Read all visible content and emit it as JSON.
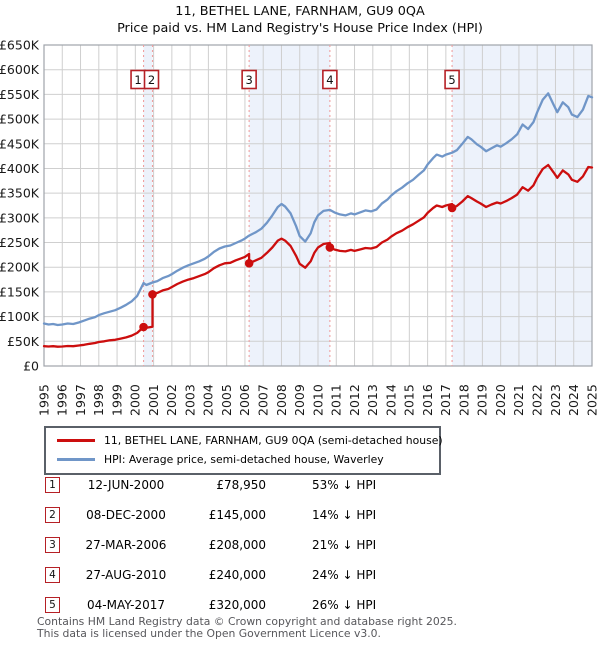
{
  "chart": {
    "title": "11, BETHEL LANE, FARNHAM, GU9 0QA",
    "subtitle": "Price paid vs. HM Land Registry's House Price Index (HPI)"
  },
  "legend": {
    "property": "11, BETHEL LANE, FARNHAM, GU9 0QA (semi-detached house)",
    "hpi": "HPI: Average price, semi-detached house, Waverley"
  },
  "sales_table": {
    "rows": [
      {
        "num": "1",
        "date": "12-JUN-2000",
        "price": "£78,950",
        "hpi": "53% ↓ HPI"
      },
      {
        "num": "2",
        "date": "08-DEC-2000",
        "price": "£145,000",
        "hpi": "14% ↓ HPI"
      },
      {
        "num": "3",
        "date": "27-MAR-2006",
        "price": "£208,000",
        "hpi": "21% ↓ HPI"
      },
      {
        "num": "4",
        "date": "27-AUG-2010",
        "price": "£240,000",
        "hpi": "24% ↓ HPI"
      },
      {
        "num": "5",
        "date": "04-MAY-2017",
        "price": "£320,000",
        "hpi": "26% ↓ HPI"
      }
    ]
  },
  "footer": {
    "line1": "Contains HM Land Registry data © Crown copyright and database right 2025.",
    "line2": "This data is licensed under the Open Government Licence v3.0."
  },
  "chart_data": {
    "type": "line",
    "title": "11, BETHEL LANE, FARNHAM, GU9 0QA",
    "subtitle": "Price paid vs. HM Land Registry's House Price Index (HPI)",
    "x_axis": {
      "range": [
        1995,
        2025
      ],
      "years": [
        1995,
        1996,
        1997,
        1998,
        1999,
        2000,
        2001,
        2002,
        2003,
        2004,
        2005,
        2006,
        2007,
        2008,
        2009,
        2010,
        2011,
        2012,
        2013,
        2014,
        2015,
        2016,
        2017,
        2018,
        2019,
        2020,
        2021,
        2022,
        2023,
        2024,
        2025
      ]
    },
    "y_axis": {
      "min_k": 0,
      "max_k": 650,
      "step_k": 50,
      "tick_labels": [
        "£0",
        "£50K",
        "£100K",
        "£150K",
        "£200K",
        "£250K",
        "£300K",
        "£350K",
        "£400K",
        "£450K",
        "£500K",
        "£550K",
        "£600K",
        "£650K"
      ]
    },
    "series": [
      {
        "name": "HPI: Average price, semi-detached house, Waverley",
        "color": "#7096c8",
        "unit": "GBP_thousands",
        "points": [
          [
            1995.0,
            86
          ],
          [
            1995.25,
            84
          ],
          [
            1995.5,
            85
          ],
          [
            1995.75,
            83
          ],
          [
            1996.0,
            84
          ],
          [
            1996.3,
            86
          ],
          [
            1996.6,
            85
          ],
          [
            1996.9,
            88
          ],
          [
            1997.2,
            92
          ],
          [
            1997.5,
            96
          ],
          [
            1997.8,
            99
          ],
          [
            1998.0,
            103
          ],
          [
            1998.3,
            107
          ],
          [
            1998.6,
            110
          ],
          [
            1998.9,
            113
          ],
          [
            1999.2,
            118
          ],
          [
            1999.5,
            124
          ],
          [
            1999.8,
            131
          ],
          [
            2000.1,
            142
          ],
          [
            2000.45,
            168
          ],
          [
            2000.6,
            164
          ],
          [
            2000.94,
            169
          ],
          [
            2001.2,
            172
          ],
          [
            2001.5,
            178
          ],
          [
            2001.8,
            182
          ],
          [
            2002.0,
            186
          ],
          [
            2002.3,
            193
          ],
          [
            2002.6,
            199
          ],
          [
            2002.9,
            204
          ],
          [
            2003.2,
            208
          ],
          [
            2003.5,
            212
          ],
          [
            2003.8,
            217
          ],
          [
            2004.0,
            222
          ],
          [
            2004.3,
            231
          ],
          [
            2004.6,
            238
          ],
          [
            2004.9,
            242
          ],
          [
            2005.2,
            244
          ],
          [
            2005.5,
            249
          ],
          [
            2005.8,
            254
          ],
          [
            2006.0,
            258
          ],
          [
            2006.23,
            264
          ],
          [
            2006.6,
            271
          ],
          [
            2006.9,
            278
          ],
          [
            2007.2,
            290
          ],
          [
            2007.5,
            305
          ],
          [
            2007.8,
            322
          ],
          [
            2008.0,
            328
          ],
          [
            2008.2,
            323
          ],
          [
            2008.5,
            309
          ],
          [
            2008.8,
            283
          ],
          [
            2009.0,
            263
          ],
          [
            2009.3,
            252
          ],
          [
            2009.6,
            269
          ],
          [
            2009.8,
            291
          ],
          [
            2010.0,
            305
          ],
          [
            2010.3,
            314
          ],
          [
            2010.65,
            316
          ],
          [
            2010.9,
            311
          ],
          [
            2011.2,
            307
          ],
          [
            2011.5,
            305
          ],
          [
            2011.8,
            309
          ],
          [
            2012.0,
            307
          ],
          [
            2012.3,
            311
          ],
          [
            2012.6,
            315
          ],
          [
            2012.9,
            313
          ],
          [
            2013.2,
            317
          ],
          [
            2013.5,
            329
          ],
          [
            2013.8,
            337
          ],
          [
            2014.0,
            345
          ],
          [
            2014.3,
            354
          ],
          [
            2014.6,
            361
          ],
          [
            2014.9,
            370
          ],
          [
            2015.2,
            377
          ],
          [
            2015.5,
            387
          ],
          [
            2015.8,
            396
          ],
          [
            2016.0,
            408
          ],
          [
            2016.3,
            421
          ],
          [
            2016.5,
            428
          ],
          [
            2016.8,
            424
          ],
          [
            2017.0,
            428
          ],
          [
            2017.34,
            432
          ],
          [
            2017.6,
            437
          ],
          [
            2017.9,
            450
          ],
          [
            2018.2,
            464
          ],
          [
            2018.4,
            459
          ],
          [
            2018.7,
            449
          ],
          [
            2018.9,
            444
          ],
          [
            2019.2,
            435
          ],
          [
            2019.5,
            441
          ],
          [
            2019.8,
            447
          ],
          [
            2020.0,
            444
          ],
          [
            2020.3,
            451
          ],
          [
            2020.6,
            459
          ],
          [
            2020.9,
            469
          ],
          [
            2021.2,
            489
          ],
          [
            2021.5,
            480
          ],
          [
            2021.8,
            494
          ],
          [
            2022.0,
            514
          ],
          [
            2022.3,
            539
          ],
          [
            2022.6,
            552
          ],
          [
            2022.9,
            529
          ],
          [
            2023.1,
            514
          ],
          [
            2023.4,
            534
          ],
          [
            2023.7,
            524
          ],
          [
            2023.9,
            509
          ],
          [
            2024.2,
            504
          ],
          [
            2024.5,
            519
          ],
          [
            2024.8,
            547
          ],
          [
            2025.0,
            544
          ]
        ]
      },
      {
        "name": "11, BETHEL LANE, FARNHAM, GU9 0QA (semi-detached house)",
        "color": "#cc0e0e",
        "unit": "GBP_thousands",
        "points": [
          [
            1995.0,
            40
          ],
          [
            1995.25,
            39.5
          ],
          [
            1995.5,
            40
          ],
          [
            1995.75,
            39
          ],
          [
            1996.0,
            39.5
          ],
          [
            1996.3,
            40.5
          ],
          [
            1996.6,
            40
          ],
          [
            1996.9,
            41.5
          ],
          [
            1997.2,
            43
          ],
          [
            1997.5,
            45
          ],
          [
            1997.8,
            46.5
          ],
          [
            1998.0,
            48.5
          ],
          [
            1998.3,
            50
          ],
          [
            1998.6,
            52
          ],
          [
            1998.9,
            53
          ],
          [
            1999.2,
            55.5
          ],
          [
            1999.5,
            58
          ],
          [
            1999.8,
            61.5
          ],
          [
            2000.1,
            67
          ],
          [
            2000.45,
            79
          ],
          [
            2000.6,
            77.5
          ],
          [
            2000.94,
            79.5
          ],
          [
            2000.94,
            145
          ],
          [
            2001.2,
            148
          ],
          [
            2001.5,
            153
          ],
          [
            2001.8,
            156
          ],
          [
            2002.0,
            160
          ],
          [
            2002.3,
            166
          ],
          [
            2002.6,
            171
          ],
          [
            2002.9,
            175
          ],
          [
            2003.2,
            178
          ],
          [
            2003.5,
            182
          ],
          [
            2003.8,
            186
          ],
          [
            2004.0,
            190
          ],
          [
            2004.3,
            198
          ],
          [
            2004.6,
            204
          ],
          [
            2004.9,
            208
          ],
          [
            2005.2,
            209
          ],
          [
            2005.5,
            214
          ],
          [
            2005.8,
            218
          ],
          [
            2006.0,
            221
          ],
          [
            2006.23,
            227
          ],
          [
            2006.23,
            208
          ],
          [
            2006.6,
            214
          ],
          [
            2006.9,
            219
          ],
          [
            2007.2,
            229
          ],
          [
            2007.5,
            240
          ],
          [
            2007.8,
            254
          ],
          [
            2008.0,
            258
          ],
          [
            2008.2,
            254
          ],
          [
            2008.5,
            243
          ],
          [
            2008.8,
            223
          ],
          [
            2009.0,
            207
          ],
          [
            2009.3,
            199
          ],
          [
            2009.6,
            212
          ],
          [
            2009.8,
            229
          ],
          [
            2010.0,
            240
          ],
          [
            2010.3,
            247
          ],
          [
            2010.65,
            249
          ],
          [
            2010.65,
            240
          ],
          [
            2010.9,
            236
          ],
          [
            2011.2,
            233
          ],
          [
            2011.5,
            232
          ],
          [
            2011.8,
            235
          ],
          [
            2012.0,
            233
          ],
          [
            2012.3,
            236
          ],
          [
            2012.6,
            239
          ],
          [
            2012.9,
            238
          ],
          [
            2013.2,
            241
          ],
          [
            2013.5,
            250
          ],
          [
            2013.8,
            256
          ],
          [
            2014.0,
            262
          ],
          [
            2014.3,
            269
          ],
          [
            2014.6,
            274
          ],
          [
            2014.9,
            281
          ],
          [
            2015.2,
            287
          ],
          [
            2015.5,
            294
          ],
          [
            2015.8,
            301
          ],
          [
            2016.0,
            310
          ],
          [
            2016.3,
            320
          ],
          [
            2016.5,
            325
          ],
          [
            2016.8,
            322
          ],
          [
            2017.0,
            325
          ],
          [
            2017.34,
            328
          ],
          [
            2017.34,
            320
          ],
          [
            2017.6,
            324
          ],
          [
            2017.9,
            333
          ],
          [
            2018.2,
            344
          ],
          [
            2018.4,
            340
          ],
          [
            2018.7,
            333
          ],
          [
            2018.9,
            329
          ],
          [
            2019.2,
            322
          ],
          [
            2019.5,
            327
          ],
          [
            2019.8,
            331
          ],
          [
            2020.0,
            329
          ],
          [
            2020.3,
            334
          ],
          [
            2020.6,
            340
          ],
          [
            2020.9,
            347
          ],
          [
            2021.2,
            362
          ],
          [
            2021.5,
            355
          ],
          [
            2021.8,
            366
          ],
          [
            2022.0,
            381
          ],
          [
            2022.3,
            399
          ],
          [
            2022.6,
            407
          ],
          [
            2022.9,
            392
          ],
          [
            2023.1,
            381
          ],
          [
            2023.4,
            396
          ],
          [
            2023.7,
            388
          ],
          [
            2023.9,
            377
          ],
          [
            2024.2,
            373
          ],
          [
            2024.5,
            384
          ],
          [
            2024.8,
            403
          ],
          [
            2025.0,
            402
          ]
        ]
      }
    ],
    "sales": [
      {
        "label": "1",
        "year": 2000.45,
        "price_k": 78.95,
        "box_dx": -5.5
      },
      {
        "label": "2",
        "year": 2000.94,
        "price_k": 145,
        "box_dx": -1
      },
      {
        "label": "3",
        "year": 2006.23,
        "price_k": 208,
        "box_dx": 0
      },
      {
        "label": "4",
        "year": 2010.65,
        "price_k": 240,
        "box_dx": 0
      },
      {
        "label": "5",
        "year": 2017.34,
        "price_k": 320,
        "box_dx": 0
      }
    ],
    "ownership_bands": [
      [
        2000.45,
        2000.94
      ],
      [
        2006.23,
        2010.65
      ],
      [
        2017.34,
        2025.0
      ]
    ],
    "colors": {
      "property_line": "#cc0e0e",
      "hpi_line": "#7096c8",
      "sale_dot": "#cc0e0e",
      "sale_marker_line": "#f0a0a0",
      "marker_box_border": "#b52025",
      "band_fill": "#edf2fb",
      "grid": "#cfcfcf",
      "plot_border": "#9fa4ab",
      "axis_text": "#1a1a1a"
    },
    "legend_position": "bottom",
    "grid": true
  }
}
